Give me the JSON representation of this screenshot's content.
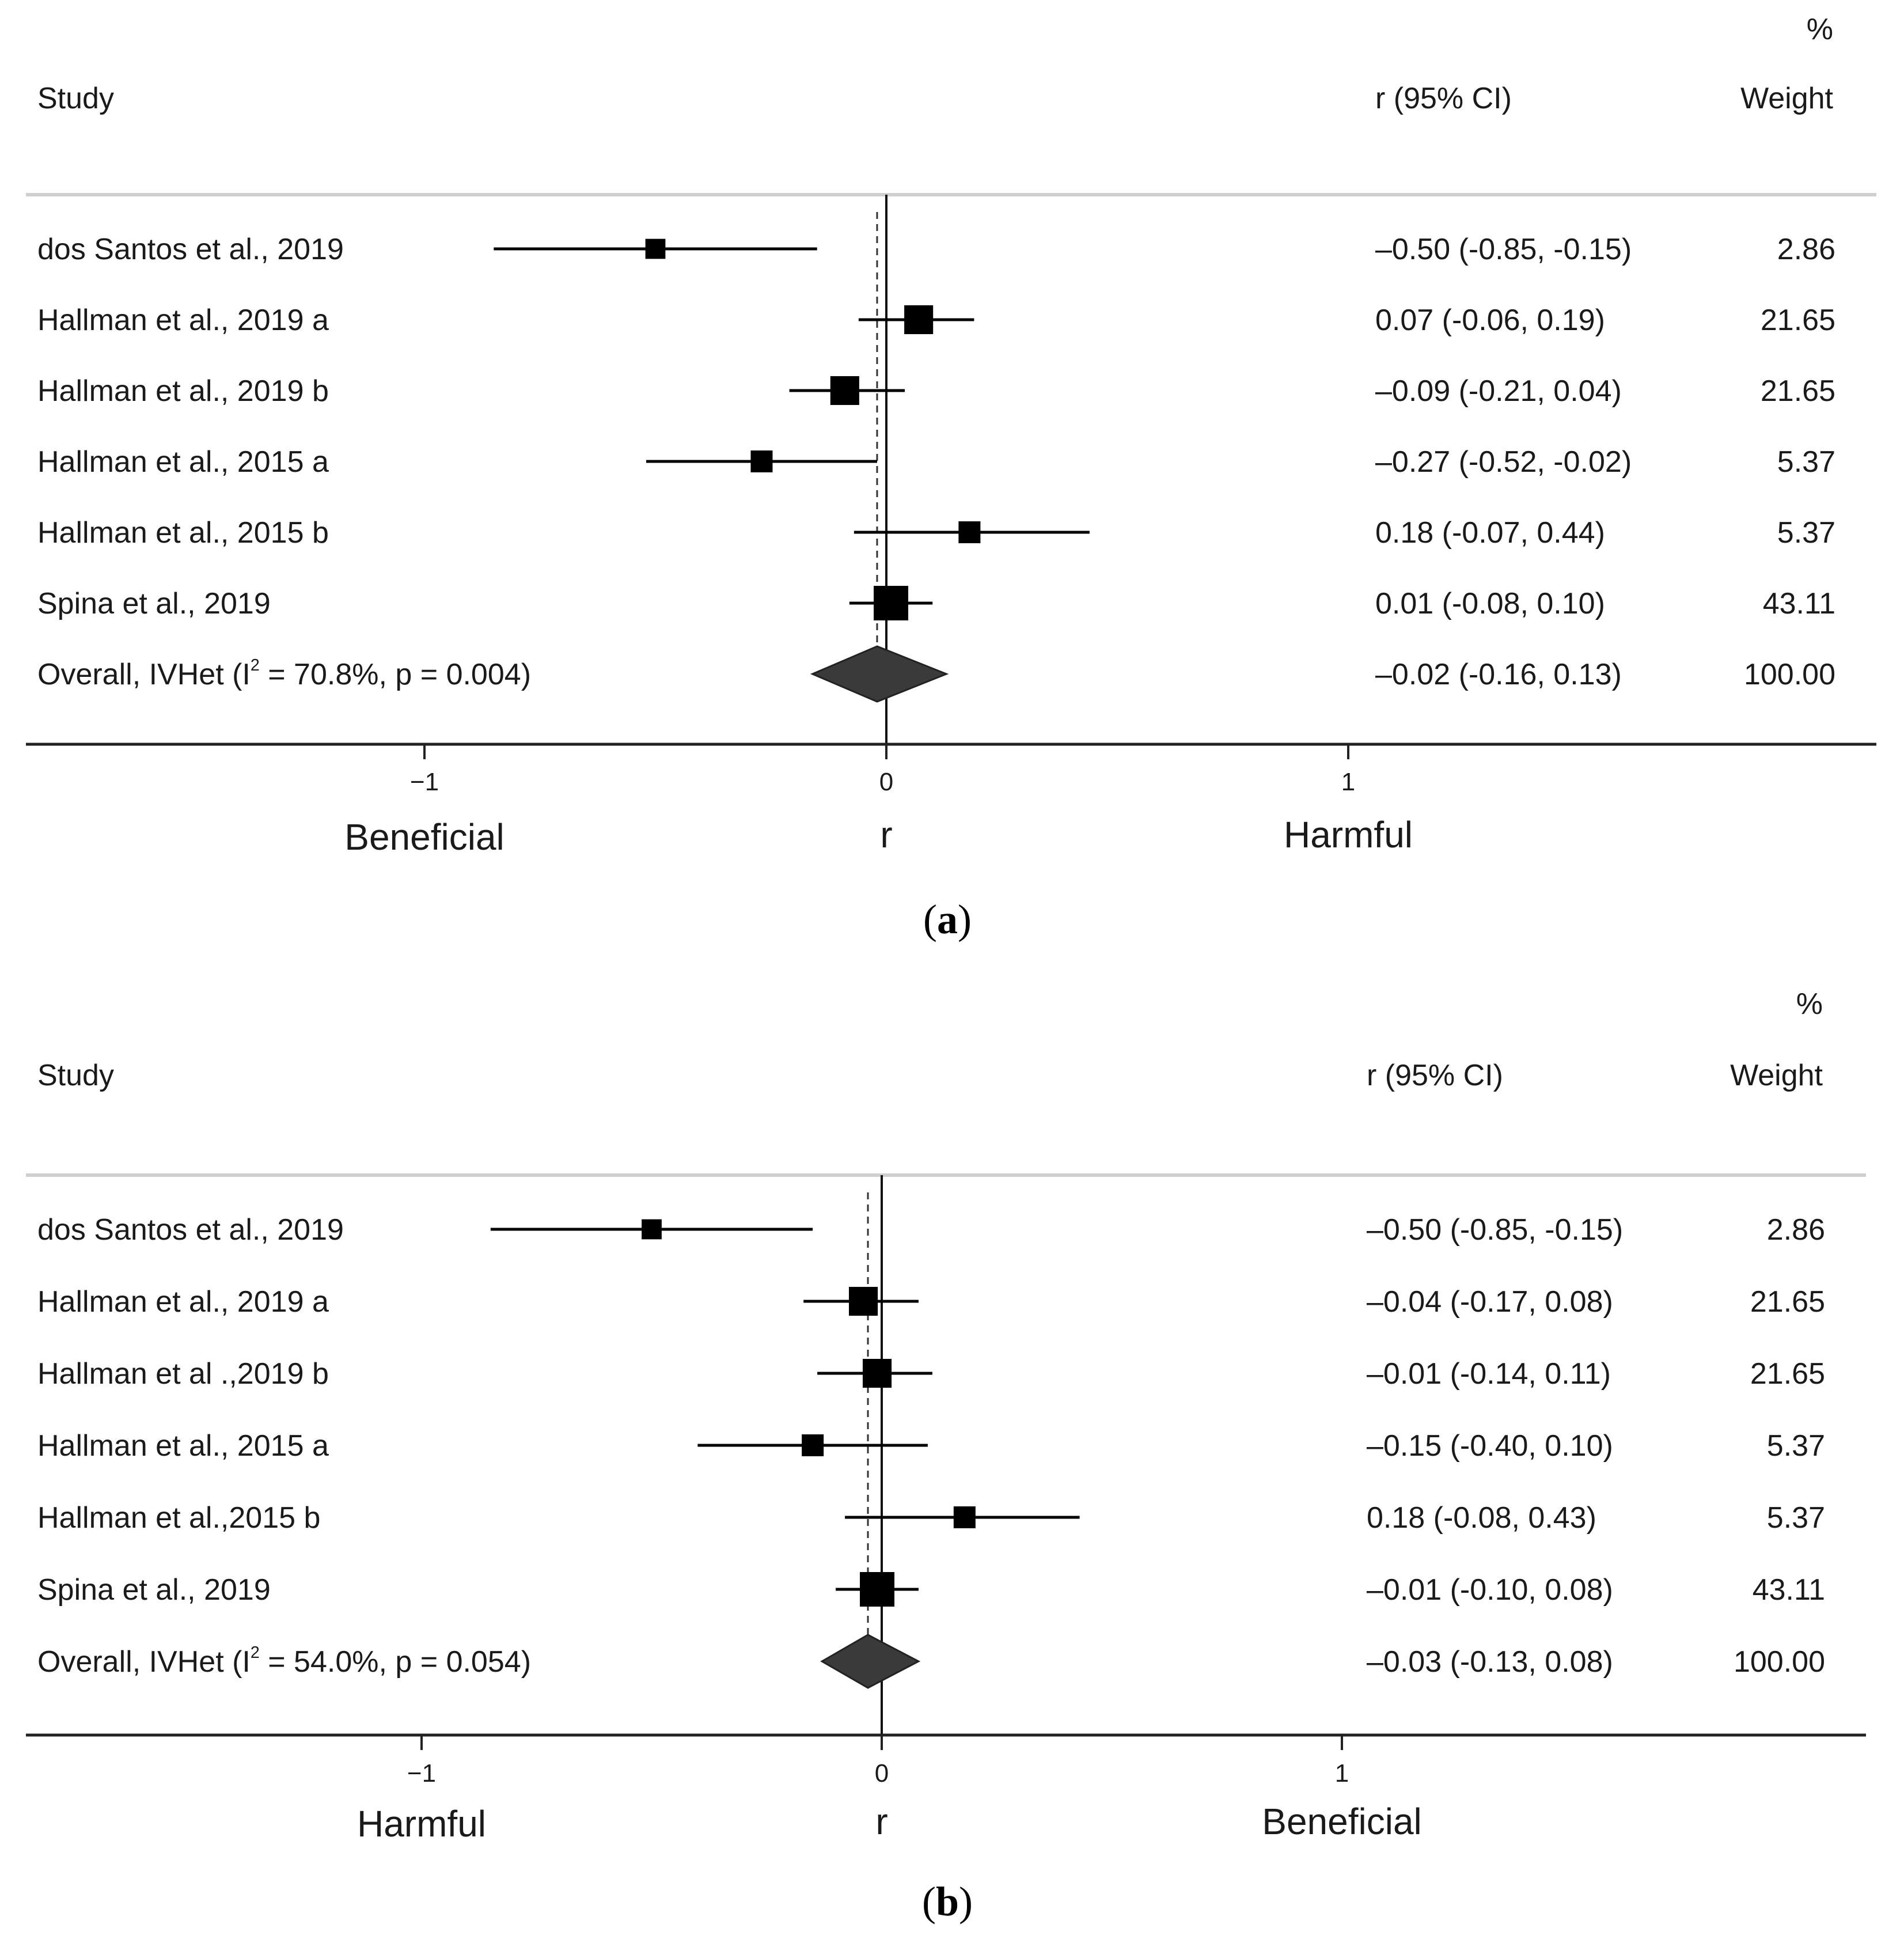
{
  "chart_data": [
    {
      "type": "forest",
      "panel_label": "a",
      "headers": {
        "study": "Study",
        "effect": "r (95% CI)",
        "weight_pct": "%",
        "weight": "Weight"
      },
      "studies": [
        {
          "name": "dos Santos et al., 2019",
          "r": -0.5,
          "ci": [
            -0.85,
            -0.15
          ],
          "ci_text": "–0.50 (-0.85, -0.15)",
          "weight": "2.86",
          "weight_value": 2.86
        },
        {
          "name": "Hallman et al., 2019 a",
          "r": 0.07,
          "ci": [
            -0.06,
            0.19
          ],
          "ci_text": "0.07 (-0.06, 0.19)",
          "weight": "21.65",
          "weight_value": 21.65
        },
        {
          "name": "Hallman et al., 2019 b",
          "r": -0.09,
          "ci": [
            -0.21,
            0.04
          ],
          "ci_text": "–0.09 (-0.21, 0.04)",
          "weight": "21.65",
          "weight_value": 21.65
        },
        {
          "name": "Hallman et al., 2015 a",
          "r": -0.27,
          "ci": [
            -0.52,
            -0.02
          ],
          "ci_text": "–0.27 (-0.52, -0.02)",
          "weight": "5.37",
          "weight_value": 5.37
        },
        {
          "name": "Hallman et al., 2015 b",
          "r": 0.18,
          "ci": [
            -0.07,
            0.44
          ],
          "ci_text": "0.18 (-0.07, 0.44)",
          "weight": "5.37",
          "weight_value": 5.37
        },
        {
          "name": "Spina et al., 2019",
          "r": 0.01,
          "ci": [
            -0.08,
            0.1
          ],
          "ci_text": "0.01 (-0.08, 0.10)",
          "weight": "43.11",
          "weight_value": 43.11
        }
      ],
      "overall": {
        "label_prefix": "Overall, IVHet (I",
        "label_sup": "2",
        "label_suffix": " = 70.8%, p = 0.004)",
        "r": -0.02,
        "ci": [
          -0.16,
          0.13
        ],
        "ci_text": "–0.02 (-0.16, 0.13)",
        "weight": "100.00"
      },
      "x_ticks": [
        {
          "value": -1,
          "label": "−1"
        },
        {
          "value": 0,
          "label": "0"
        },
        {
          "value": 1,
          "label": "1"
        }
      ],
      "xlim": [
        -1.86,
        2.1
      ],
      "xlabel": "r",
      "left_label": "Beneficial",
      "right_label": "Harmful"
    },
    {
      "type": "forest",
      "panel_label": "b",
      "headers": {
        "study": "Study",
        "effect": "r (95% CI)",
        "weight_pct": "%",
        "weight": "Weight"
      },
      "studies": [
        {
          "name": "dos Santos et al., 2019",
          "r": -0.5,
          "ci": [
            -0.85,
            -0.15
          ],
          "ci_text": "–0.50 (-0.85, -0.15)",
          "weight": "2.86",
          "weight_value": 2.86
        },
        {
          "name": "Hallman et al., 2019 a",
          "r": -0.04,
          "ci": [
            -0.17,
            0.08
          ],
          "ci_text": "–0.04 (-0.17, 0.08)",
          "weight": "21.65",
          "weight_value": 21.65
        },
        {
          "name": "Hallman et al .,2019 b",
          "r": -0.01,
          "ci": [
            -0.14,
            0.11
          ],
          "ci_text": "–0.01 (-0.14, 0.11)",
          "weight": "21.65",
          "weight_value": 21.65
        },
        {
          "name": "Hallman et al., 2015 a",
          "r": -0.15,
          "ci": [
            -0.4,
            0.1
          ],
          "ci_text": "–0.15 (-0.40, 0.10)",
          "weight": "5.37",
          "weight_value": 5.37
        },
        {
          "name": "Hallman et al.,2015 b",
          "r": 0.18,
          "ci": [
            -0.08,
            0.43
          ],
          "ci_text": "0.18 (-0.08, 0.43)",
          "weight": "5.37",
          "weight_value": 5.37
        },
        {
          "name": "Spina et al., 2019",
          "r": -0.01,
          "ci": [
            -0.1,
            0.08
          ],
          "ci_text": "–0.01 (-0.10, 0.08)",
          "weight": "43.11",
          "weight_value": 43.11
        }
      ],
      "overall": {
        "label_prefix": "Overall, IVHet (I",
        "label_sup": "2",
        "label_suffix": " = 54.0%, p = 0.054)",
        "r": -0.03,
        "ci": [
          -0.13,
          0.08
        ],
        "ci_text": "–0.03 (-0.13, 0.08)",
        "weight": "100.00"
      },
      "x_ticks": [
        {
          "value": -1,
          "label": "−1"
        },
        {
          "value": 0,
          "label": "0"
        },
        {
          "value": 1,
          "label": "1"
        }
      ],
      "xlim": [
        -1.86,
        2.1
      ],
      "xlabel": "r",
      "left_label": "Harmful",
      "right_label": "Beneficial"
    }
  ]
}
